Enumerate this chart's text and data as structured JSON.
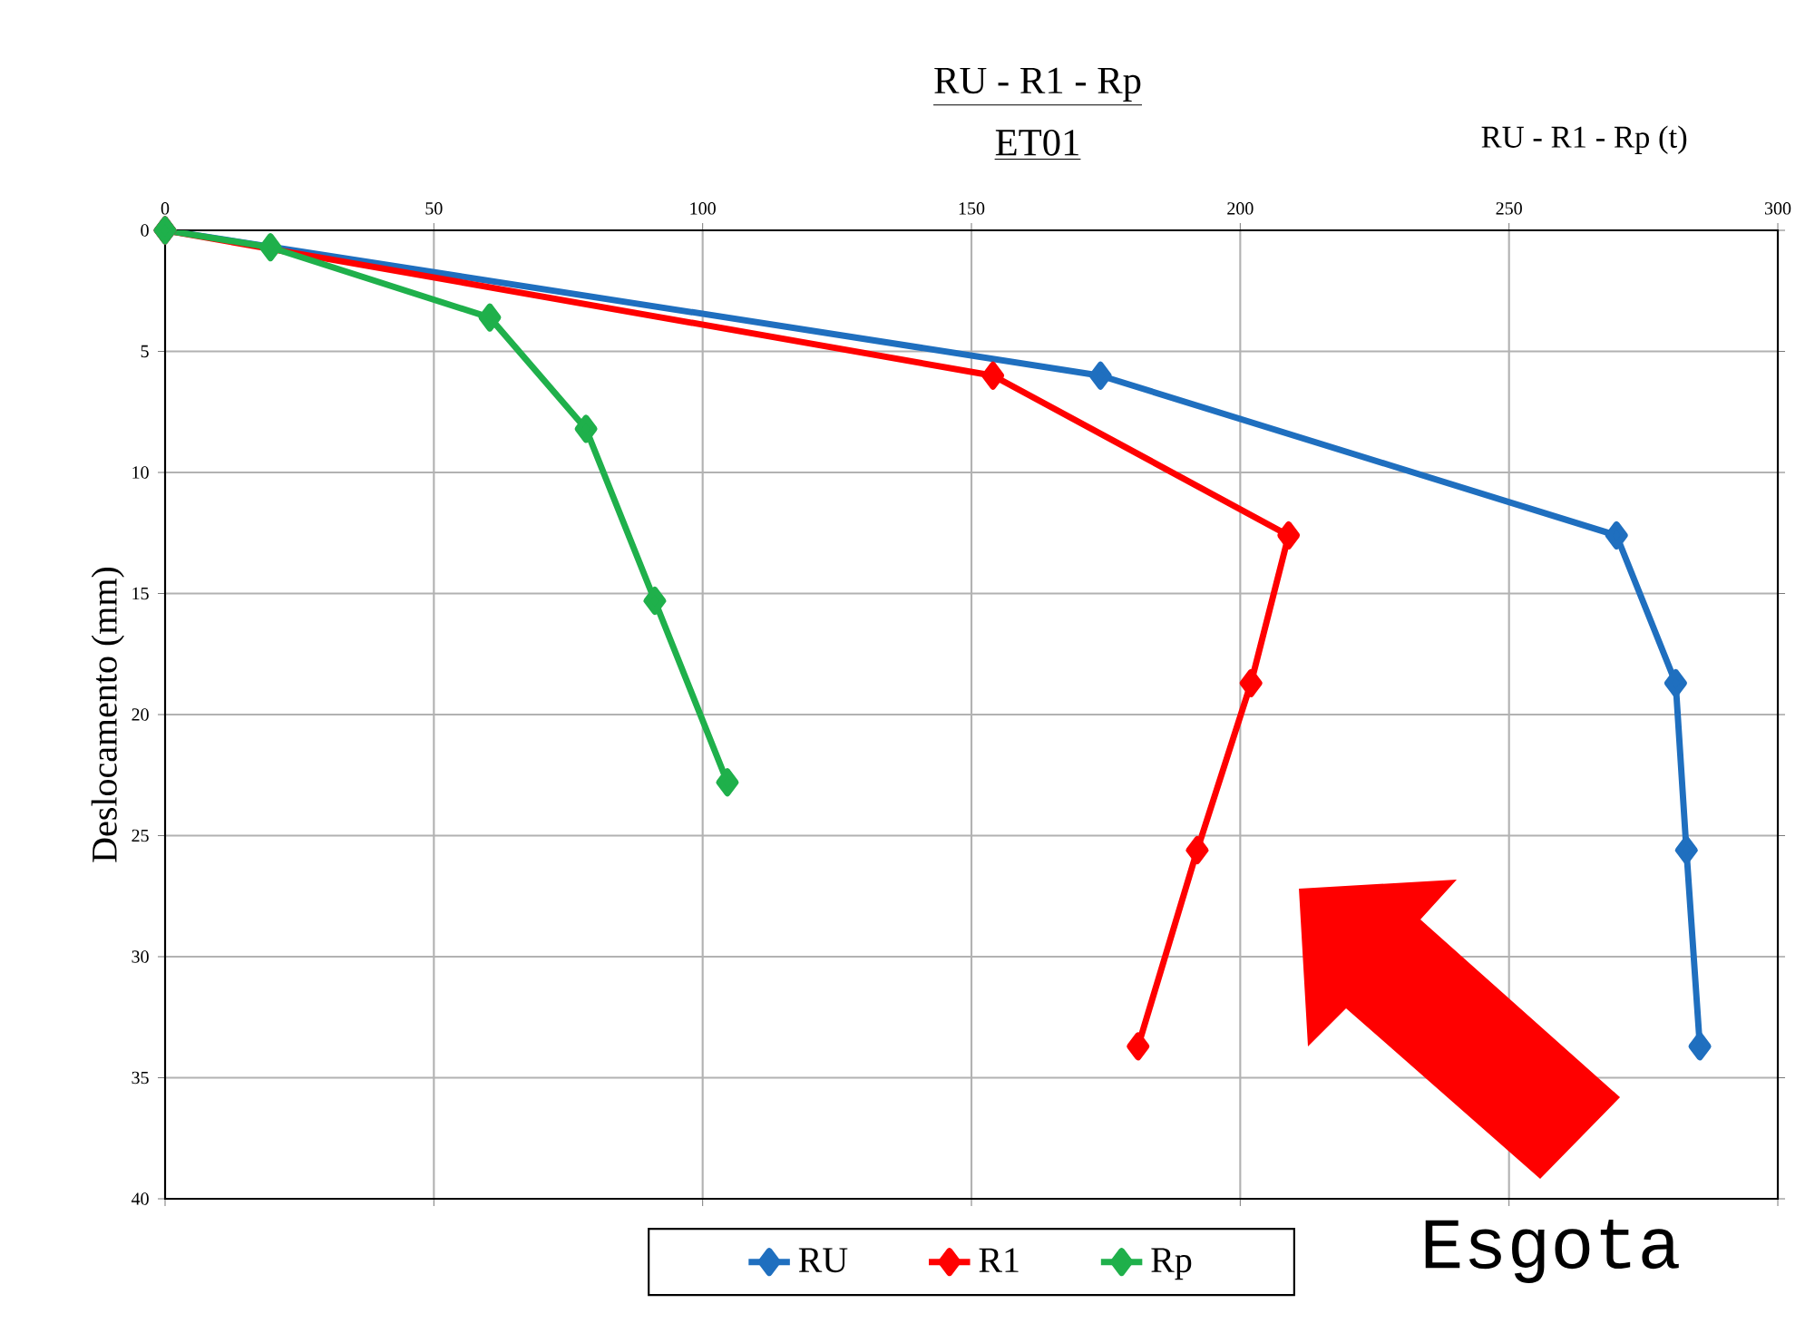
{
  "chart_data": {
    "type": "line",
    "title": "RU - R1 - Rp",
    "subtitle": "ET01",
    "xlabel": "RU - R1 - Rp (t)",
    "ylabel": "Deslocamento (mm)",
    "xlim": [
      0,
      300
    ],
    "xticks": [
      0,
      50,
      100,
      150,
      200,
      250,
      300
    ],
    "ylim": [
      40,
      0
    ],
    "yticks": [
      0,
      5,
      10,
      15,
      20,
      25,
      30,
      35,
      40
    ],
    "grid": true,
    "legend": "bottom",
    "marker": "diamond",
    "line_style": "solid",
    "series": [
      {
        "name": "RU",
        "color": "#1f6fbf",
        "x": [
          0,
          174,
          270,
          281,
          283,
          285.5
        ],
        "values": [
          0,
          6.0,
          12.6,
          18.7,
          25.6,
          33.7
        ]
      },
      {
        "name": "R1",
        "color": "#ff0000",
        "x": [
          0,
          154,
          209,
          202,
          192,
          181
        ],
        "values": [
          0,
          6.0,
          12.6,
          18.7,
          25.6,
          33.7
        ]
      },
      {
        "name": "Rp",
        "color": "#1fb04b",
        "x": [
          0,
          19.6,
          60.4,
          78.3,
          91.1,
          104.6
        ],
        "values": [
          0,
          0.7,
          3.6,
          8.2,
          15.3,
          22.8
        ]
      }
    ],
    "annotations": [
      "Esgota"
    ]
  }
}
